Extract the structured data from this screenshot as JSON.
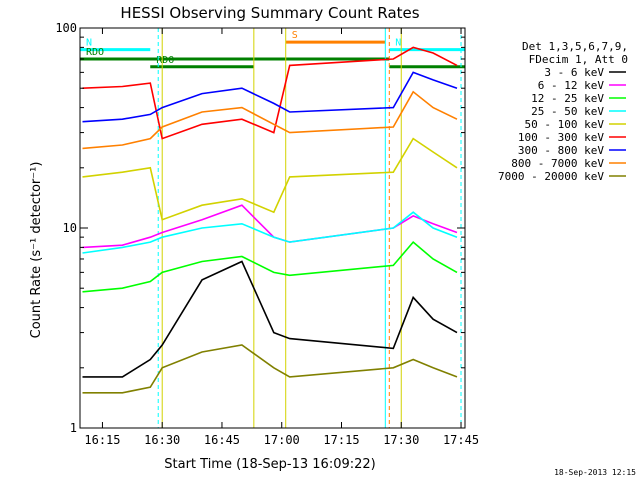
{
  "chart_data": {
    "type": "line",
    "title": "HESSI Observing Summary Count Rates",
    "xlabel": "Start Time (18-Sep-13 16:09:22)",
    "ylabel": "Count Rate (s⁻¹ detector⁻¹)",
    "y_scale": "log",
    "ylim": [
      1,
      100
    ],
    "xlim": [
      "16:09:22",
      "17:46:00"
    ],
    "x_ticks": [
      "16:15",
      "16:30",
      "16:45",
      "17:00",
      "17:15",
      "17:30",
      "17:45"
    ],
    "y_ticks": [
      "1",
      "10",
      "100"
    ],
    "grid": false,
    "legend_position": "right",
    "legend_header": [
      "Det 1,3,5,6,7,9,",
      "FDecim 1, Att 0"
    ],
    "series": [
      {
        "name": "3 - 6 keV",
        "color": "#000000",
        "x": [
          "16:10",
          "16:20",
          "16:27",
          "16:30",
          "16:40",
          "16:50",
          "16:58",
          "17:02",
          "17:28",
          "17:33",
          "17:38",
          "17:44"
        ],
        "values": [
          1.8,
          1.8,
          2.2,
          2.6,
          5.5,
          6.8,
          3.0,
          2.8,
          2.5,
          4.5,
          3.5,
          3.0
        ]
      },
      {
        "name": "6 - 12 keV",
        "color": "#ff00ff",
        "x": [
          "16:10",
          "16:20",
          "16:27",
          "16:30",
          "16:40",
          "16:50",
          "16:58",
          "17:02",
          "17:28",
          "17:33",
          "17:38",
          "17:44"
        ],
        "values": [
          8.0,
          8.2,
          9.0,
          9.5,
          11.0,
          13.0,
          9.0,
          8.5,
          10.0,
          11.5,
          10.5,
          9.5
        ]
      },
      {
        "name": "12 - 25 keV",
        "color": "#00ff00",
        "x": [
          "16:10",
          "16:20",
          "16:27",
          "16:30",
          "16:40",
          "16:50",
          "16:58",
          "17:02",
          "17:28",
          "17:33",
          "17:38",
          "17:44"
        ],
        "values": [
          4.8,
          5.0,
          5.4,
          6.0,
          6.8,
          7.2,
          6.0,
          5.8,
          6.5,
          8.5,
          7.0,
          6.0
        ]
      },
      {
        "name": "25 - 50 keV",
        "color": "#00ffff",
        "x": [
          "16:10",
          "16:20",
          "16:27",
          "16:30",
          "16:40",
          "16:50",
          "16:58",
          "17:02",
          "17:28",
          "17:33",
          "17:38",
          "17:44"
        ],
        "values": [
          7.5,
          8.0,
          8.5,
          9.0,
          10.0,
          10.5,
          9.0,
          8.5,
          10.0,
          12.0,
          10.0,
          9.0
        ]
      },
      {
        "name": "50 - 100 keV",
        "color": "#d2d200",
        "x": [
          "16:10",
          "16:20",
          "16:27",
          "16:30",
          "16:40",
          "16:50",
          "16:58",
          "17:02",
          "17:28",
          "17:33",
          "17:38",
          "17:44"
        ],
        "values": [
          18,
          19,
          20,
          11,
          13,
          14,
          12,
          18,
          19,
          28,
          24,
          20
        ]
      },
      {
        "name": "100 - 300 keV",
        "color": "#ff0000",
        "x": [
          "16:10",
          "16:20",
          "16:27",
          "16:30",
          "16:40",
          "16:50",
          "16:58",
          "17:02",
          "17:28",
          "17:33",
          "17:38",
          "17:44"
        ],
        "values": [
          50,
          51,
          53,
          28,
          33,
          35,
          30,
          65,
          70,
          80,
          75,
          65
        ]
      },
      {
        "name": "300 - 800 keV",
        "color": "#0000ff",
        "x": [
          "16:10",
          "16:20",
          "16:27",
          "16:30",
          "16:40",
          "16:50",
          "16:58",
          "17:02",
          "17:28",
          "17:33",
          "17:38",
          "17:44"
        ],
        "values": [
          34,
          35,
          37,
          40,
          47,
          50,
          42,
          38,
          40,
          60,
          55,
          50
        ]
      },
      {
        "name": "800 - 7000 keV",
        "color": "#ff8000",
        "x": [
          "16:10",
          "16:20",
          "16:27",
          "16:30",
          "16:40",
          "16:50",
          "16:58",
          "17:02",
          "17:28",
          "17:33",
          "17:38",
          "17:44"
        ],
        "values": [
          25,
          26,
          28,
          32,
          38,
          40,
          33,
          30,
          32,
          48,
          40,
          35
        ]
      },
      {
        "name": "7000 - 20000 keV",
        "color": "#808000",
        "x": [
          "16:10",
          "16:20",
          "16:27",
          "16:30",
          "16:40",
          "16:50",
          "16:58",
          "17:02",
          "17:28",
          "17:33",
          "17:38",
          "17:44"
        ],
        "values": [
          1.5,
          1.5,
          1.6,
          2.0,
          2.4,
          2.6,
          2.0,
          1.8,
          2.0,
          2.2,
          2.0,
          1.8
        ]
      }
    ],
    "annotations": [
      {
        "label": "N",
        "color": "#00ffff",
        "x_start": "16:09:22",
        "x_end": "16:27",
        "y": 78
      },
      {
        "label": "N",
        "color": "#00ffff",
        "x_start": "17:27",
        "x_end": "17:46",
        "y": 78
      },
      {
        "label": "S",
        "color": "#ff8000",
        "x_start": "17:01",
        "x_end": "17:26",
        "y": 85
      },
      {
        "label": "RDO",
        "color": "#008000",
        "x_start": "16:09:22",
        "x_end": "17:27",
        "y": 70
      },
      {
        "label": "RDO",
        "color": "#008000",
        "x_start": "16:27",
        "x_end": "16:53",
        "y": 64
      },
      {
        "label": "",
        "color": "#008000",
        "x_start": "17:27",
        "x_end": "17:46",
        "y": 64
      }
    ],
    "markers": [
      {
        "x": "16:29",
        "color": "#00ffff",
        "style": "dashed"
      },
      {
        "x": "16:30",
        "color": "#d2d200",
        "style": "solid"
      },
      {
        "x": "16:53",
        "color": "#d2d200",
        "style": "solid"
      },
      {
        "x": "17:01",
        "color": "#d2d200",
        "style": "solid"
      },
      {
        "x": "17:26",
        "color": "#00ffff",
        "style": "solid"
      },
      {
        "x": "17:27",
        "color": "#ff8000",
        "style": "dashed"
      },
      {
        "x": "17:30",
        "color": "#d2d200",
        "style": "solid"
      },
      {
        "x": "17:45",
        "color": "#00ffff",
        "style": "dashed"
      }
    ],
    "footer": "18-Sep-2013 12:15"
  }
}
